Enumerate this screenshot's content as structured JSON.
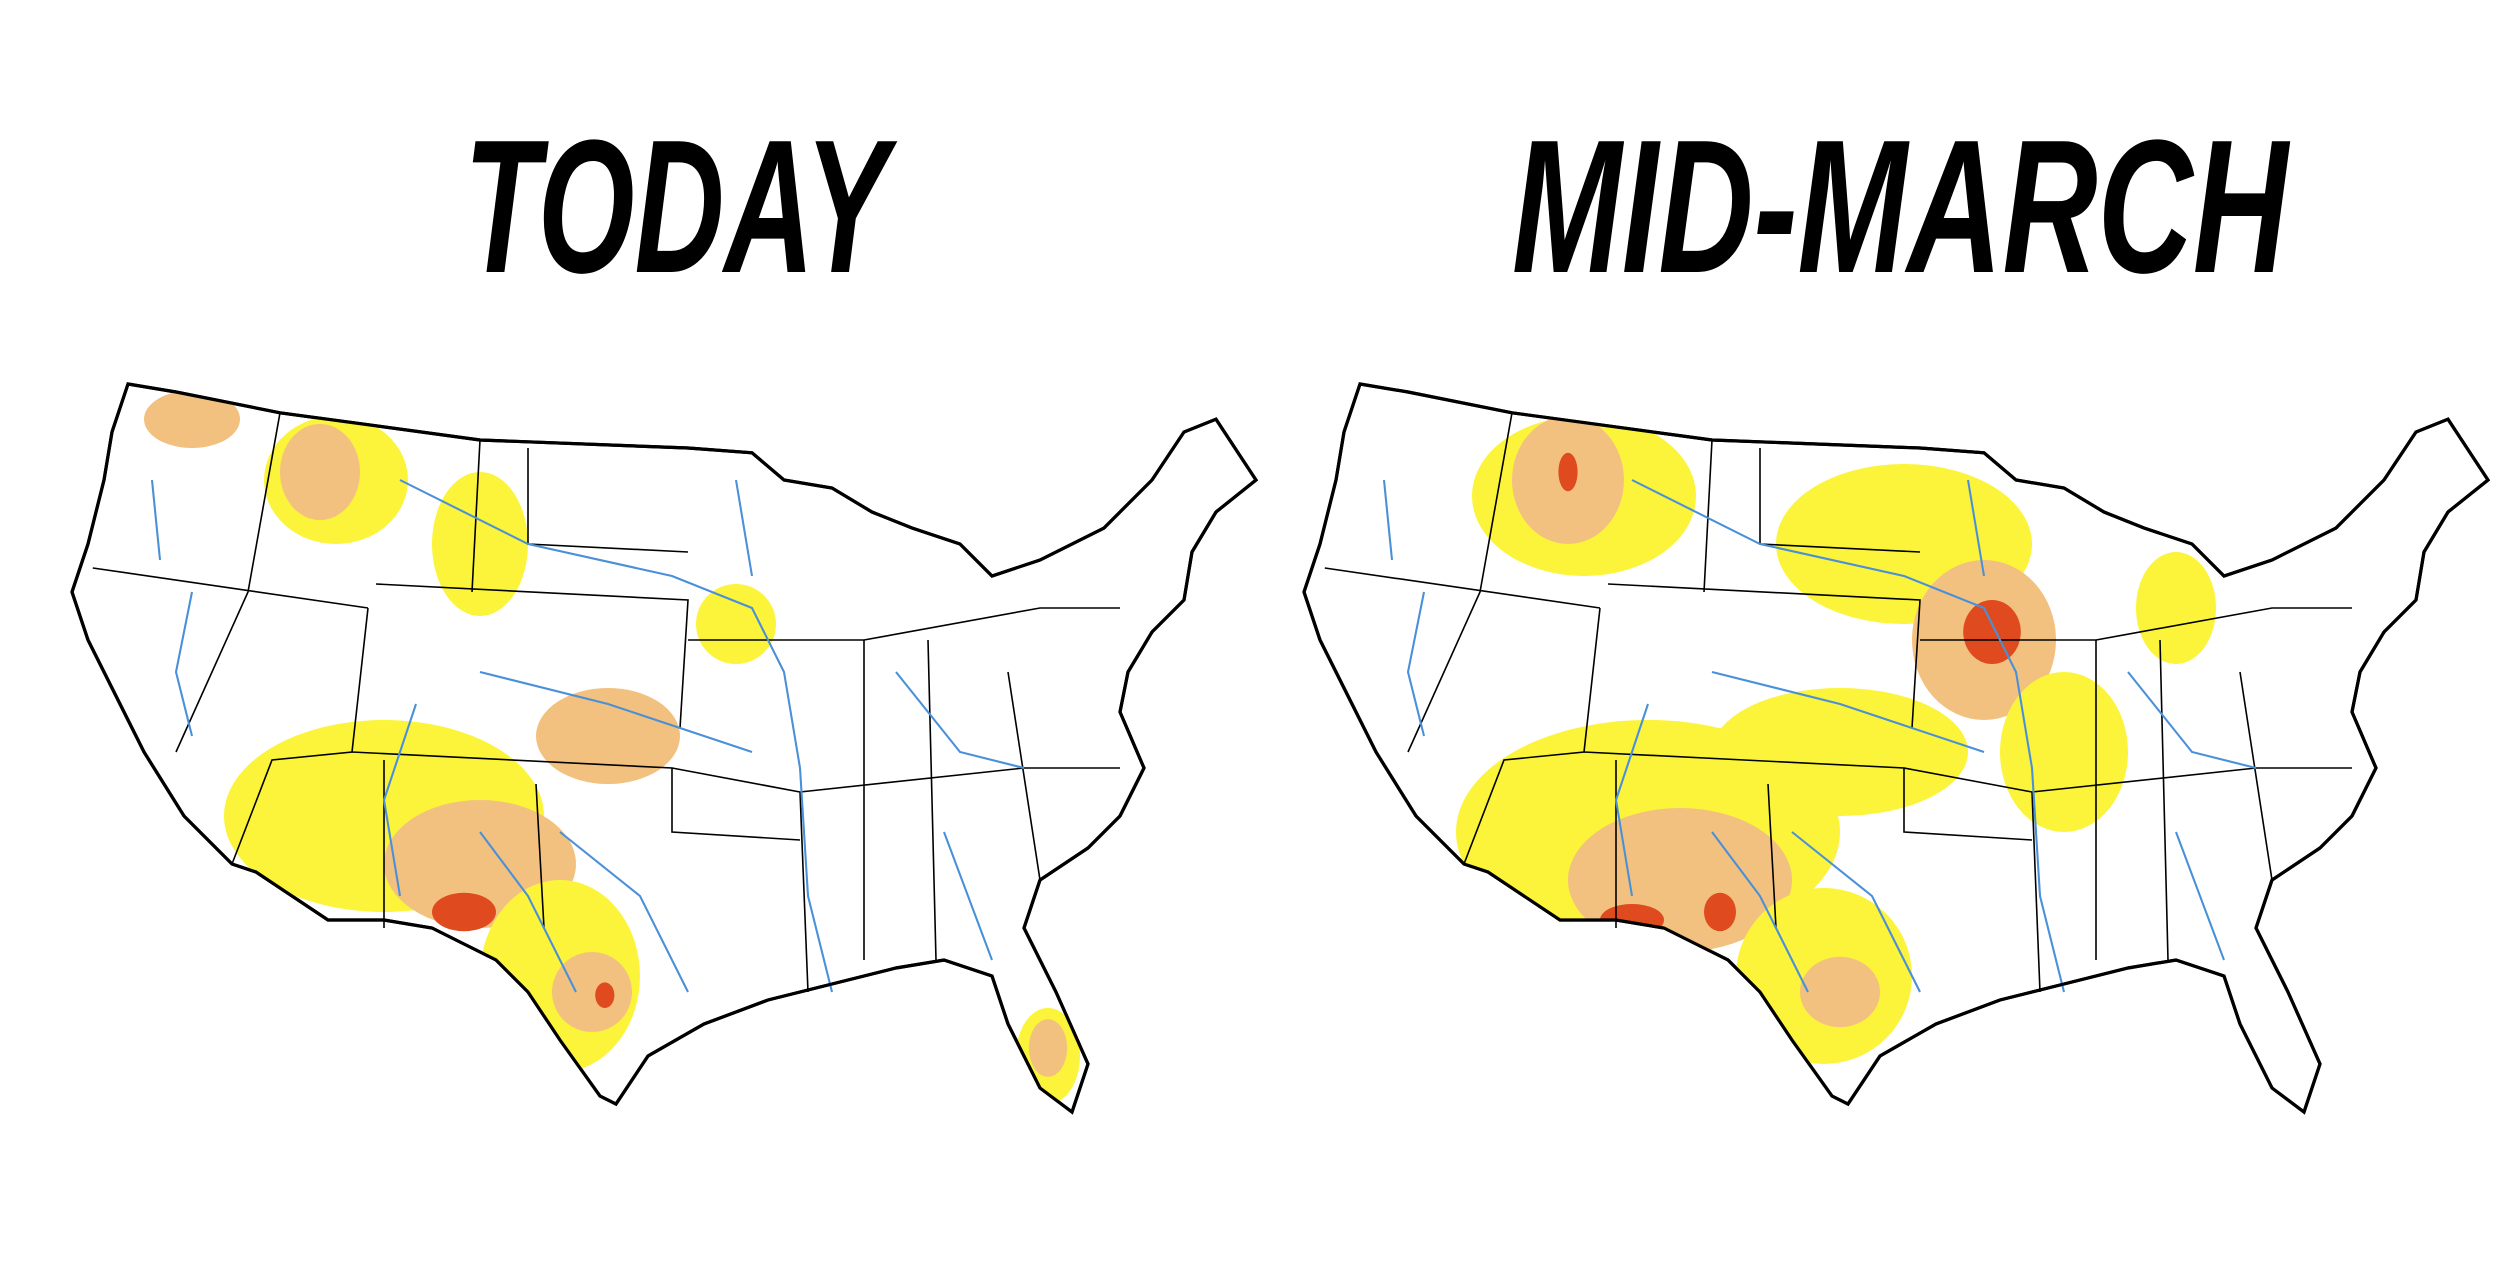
{
  "titles": {
    "left": "TODAY",
    "right": "MID-MARCH"
  }
}
